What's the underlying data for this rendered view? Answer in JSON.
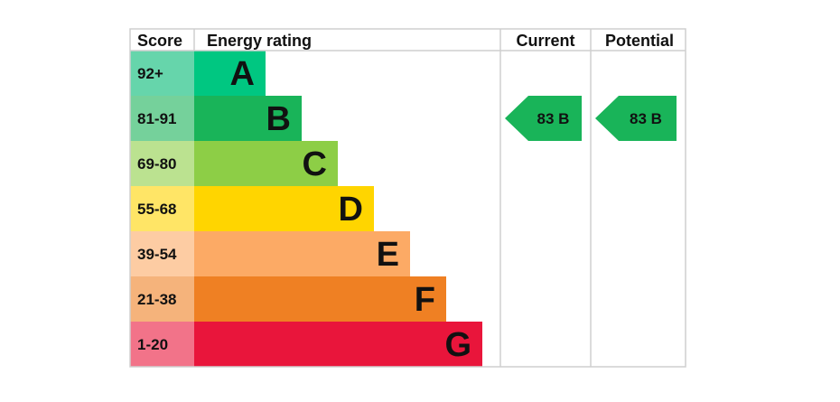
{
  "chart_data": {
    "type": "table",
    "headers": {
      "score": "Score",
      "rating": "Energy rating",
      "current": "Current",
      "potential": "Potential"
    },
    "bands": [
      {
        "score": "92+",
        "letter": "A",
        "color": "#00c781",
        "score_color": "#66d5ab"
      },
      {
        "score": "81-91",
        "letter": "B",
        "color": "#19b459",
        "score_color": "#75d19b"
      },
      {
        "score": "69-80",
        "letter": "C",
        "color": "#8dce46",
        "score_color": "#bbe290"
      },
      {
        "score": "55-68",
        "letter": "D",
        "color": "#ffd500",
        "score_color": "#ffe566"
      },
      {
        "score": "39-54",
        "letter": "E",
        "color": "#fcaa65",
        "score_color": "#fdcca3"
      },
      {
        "score": "21-38",
        "letter": "F",
        "color": "#ef8023",
        "score_color": "#f5b37b"
      },
      {
        "score": "1-20",
        "letter": "G",
        "color": "#e9153b",
        "score_color": "#f27389"
      }
    ],
    "current": {
      "value": "83",
      "letter": "B",
      "text": "83  B",
      "color": "#19b459"
    },
    "potential": {
      "value": "83",
      "letter": "B",
      "text": "83  B",
      "color": "#19b459"
    }
  }
}
